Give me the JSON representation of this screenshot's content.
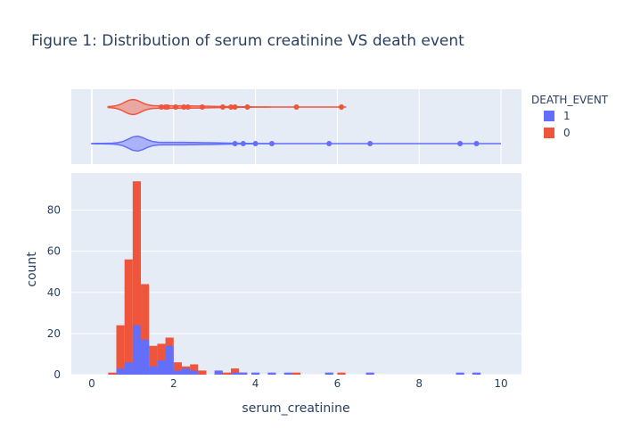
{
  "chart_data": {
    "type": "bar",
    "title": "Figure 1: Distribution of serum creatinine VS death event",
    "xlabel": "serum_creatinine",
    "ylabel": "count",
    "xlim": [
      -0.5,
      10.5
    ],
    "ylim": [
      0,
      98
    ],
    "x_ticks": [
      0,
      2,
      4,
      6,
      8,
      10
    ],
    "y_ticks": [
      0,
      20,
      40,
      60,
      80
    ],
    "barmode": "overlay",
    "bin_width": 0.2,
    "legend": {
      "title": "DEATH_EVENT",
      "position": "top-right",
      "entries": [
        {
          "name": "1",
          "color": "#636efa"
        },
        {
          "name": "0",
          "color": "#ef553b"
        }
      ]
    },
    "series": [
      {
        "name": "0",
        "color": "#ef553b",
        "bins": [
          {
            "x": 0.5,
            "count": 1
          },
          {
            "x": 0.7,
            "count": 24
          },
          {
            "x": 0.9,
            "count": 56
          },
          {
            "x": 1.1,
            "count": 94
          },
          {
            "x": 1.3,
            "count": 44
          },
          {
            "x": 1.5,
            "count": 14
          },
          {
            "x": 1.7,
            "count": 15
          },
          {
            "x": 1.9,
            "count": 18
          },
          {
            "x": 2.1,
            "count": 6
          },
          {
            "x": 2.3,
            "count": 4
          },
          {
            "x": 2.5,
            "count": 5
          },
          {
            "x": 2.7,
            "count": 2
          },
          {
            "x": 3.1,
            "count": 1
          },
          {
            "x": 3.3,
            "count": 1
          },
          {
            "x": 3.5,
            "count": 3
          },
          {
            "x": 3.7,
            "count": 1
          },
          {
            "x": 5.0,
            "count": 1
          },
          {
            "x": 6.1,
            "count": 1
          }
        ],
        "violin": {
          "range": [
            0.4,
            6.2
          ],
          "peak": 1.0,
          "points": [
            1.7,
            1.8,
            1.85,
            2.05,
            2.25,
            2.35,
            2.7,
            3.2,
            3.4,
            3.5,
            3.8,
            5.0,
            6.1
          ]
        }
      },
      {
        "name": "1",
        "color": "#636efa",
        "bins": [
          {
            "x": 0.7,
            "count": 3
          },
          {
            "x": 0.9,
            "count": 6
          },
          {
            "x": 1.1,
            "count": 24
          },
          {
            "x": 1.3,
            "count": 17
          },
          {
            "x": 1.5,
            "count": 4
          },
          {
            "x": 1.7,
            "count": 7
          },
          {
            "x": 1.9,
            "count": 14
          },
          {
            "x": 2.1,
            "count": 2
          },
          {
            "x": 2.3,
            "count": 3
          },
          {
            "x": 2.5,
            "count": 2
          },
          {
            "x": 3.1,
            "count": 2
          },
          {
            "x": 3.5,
            "count": 1
          },
          {
            "x": 3.7,
            "count": 1
          },
          {
            "x": 4.0,
            "count": 1
          },
          {
            "x": 4.4,
            "count": 1
          },
          {
            "x": 4.8,
            "count": 1
          },
          {
            "x": 5.8,
            "count": 1
          },
          {
            "x": 6.8,
            "count": 1
          },
          {
            "x": 9.0,
            "count": 1
          },
          {
            "x": 9.4,
            "count": 1
          }
        ],
        "violin": {
          "range": [
            0.0,
            10.0
          ],
          "peak": 1.1,
          "points": [
            3.5,
            3.7,
            4.0,
            4.4,
            5.8,
            6.8,
            9.0,
            9.4
          ]
        }
      }
    ]
  }
}
